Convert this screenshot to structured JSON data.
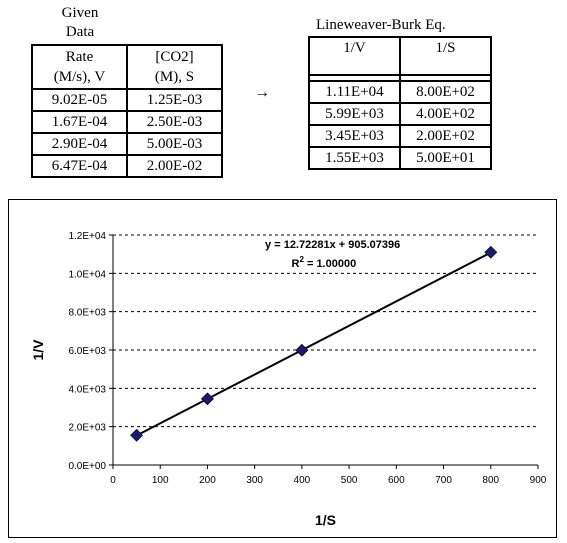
{
  "given": {
    "title_line1": "Given",
    "title_line2": "Data",
    "headers": [
      {
        "line1": "Rate",
        "line2": "(M/s), V"
      },
      {
        "line1": "[CO2]",
        "line2": "(M), S"
      }
    ],
    "rows": [
      [
        "9.02E-05",
        "1.25E-03"
      ],
      [
        "1.67E-04",
        "2.50E-03"
      ],
      [
        "2.90E-04",
        "5.00E-03"
      ],
      [
        "6.47E-04",
        "2.00E-02"
      ]
    ]
  },
  "arrow": "→",
  "lineweaver": {
    "title": "Lineweaver-Burk Eq.",
    "headers": [
      "1/V",
      "1/S"
    ],
    "rows": [
      [
        "1.11E+04",
        "8.00E+02"
      ],
      [
        "5.99E+03",
        "4.00E+02"
      ],
      [
        "3.45E+03",
        "2.00E+02"
      ],
      [
        "1.55E+03",
        "5.00E+01"
      ]
    ]
  },
  "chart_data": {
    "type": "scatter",
    "xlabel": "1/S",
    "ylabel": "1/V",
    "xlim": [
      0,
      900
    ],
    "ylim": [
      0,
      12000
    ],
    "x_ticks": [
      0,
      100,
      200,
      300,
      400,
      500,
      600,
      700,
      800,
      900
    ],
    "x_tick_labels": [
      "0",
      "100",
      "200",
      "300",
      "400",
      "500",
      "600",
      "700",
      "800",
      "900"
    ],
    "y_ticks": [
      0,
      2000,
      4000,
      6000,
      8000,
      10000,
      12000
    ],
    "y_tick_labels": [
      "0.0E+00",
      "2.0E+03",
      "4.0E+03",
      "6.0E+03",
      "8.0E+03",
      "1.0E+04",
      "1.2E+04"
    ],
    "grid": "horizontal dashed",
    "points": [
      {
        "x": 50,
        "y": 1550
      },
      {
        "x": 200,
        "y": 3450
      },
      {
        "x": 400,
        "y": 5990
      },
      {
        "x": 800,
        "y": 11100
      }
    ],
    "trendline": {
      "slope": 12.72281,
      "intercept": 905.07396
    },
    "equation": "y = 12.72281x + 905.07396",
    "r2_prefix": "R",
    "r2_exp": "2",
    "r2_value": " = 1.00000",
    "marker_color": "#1a1a6e",
    "line_color": "#000000"
  }
}
